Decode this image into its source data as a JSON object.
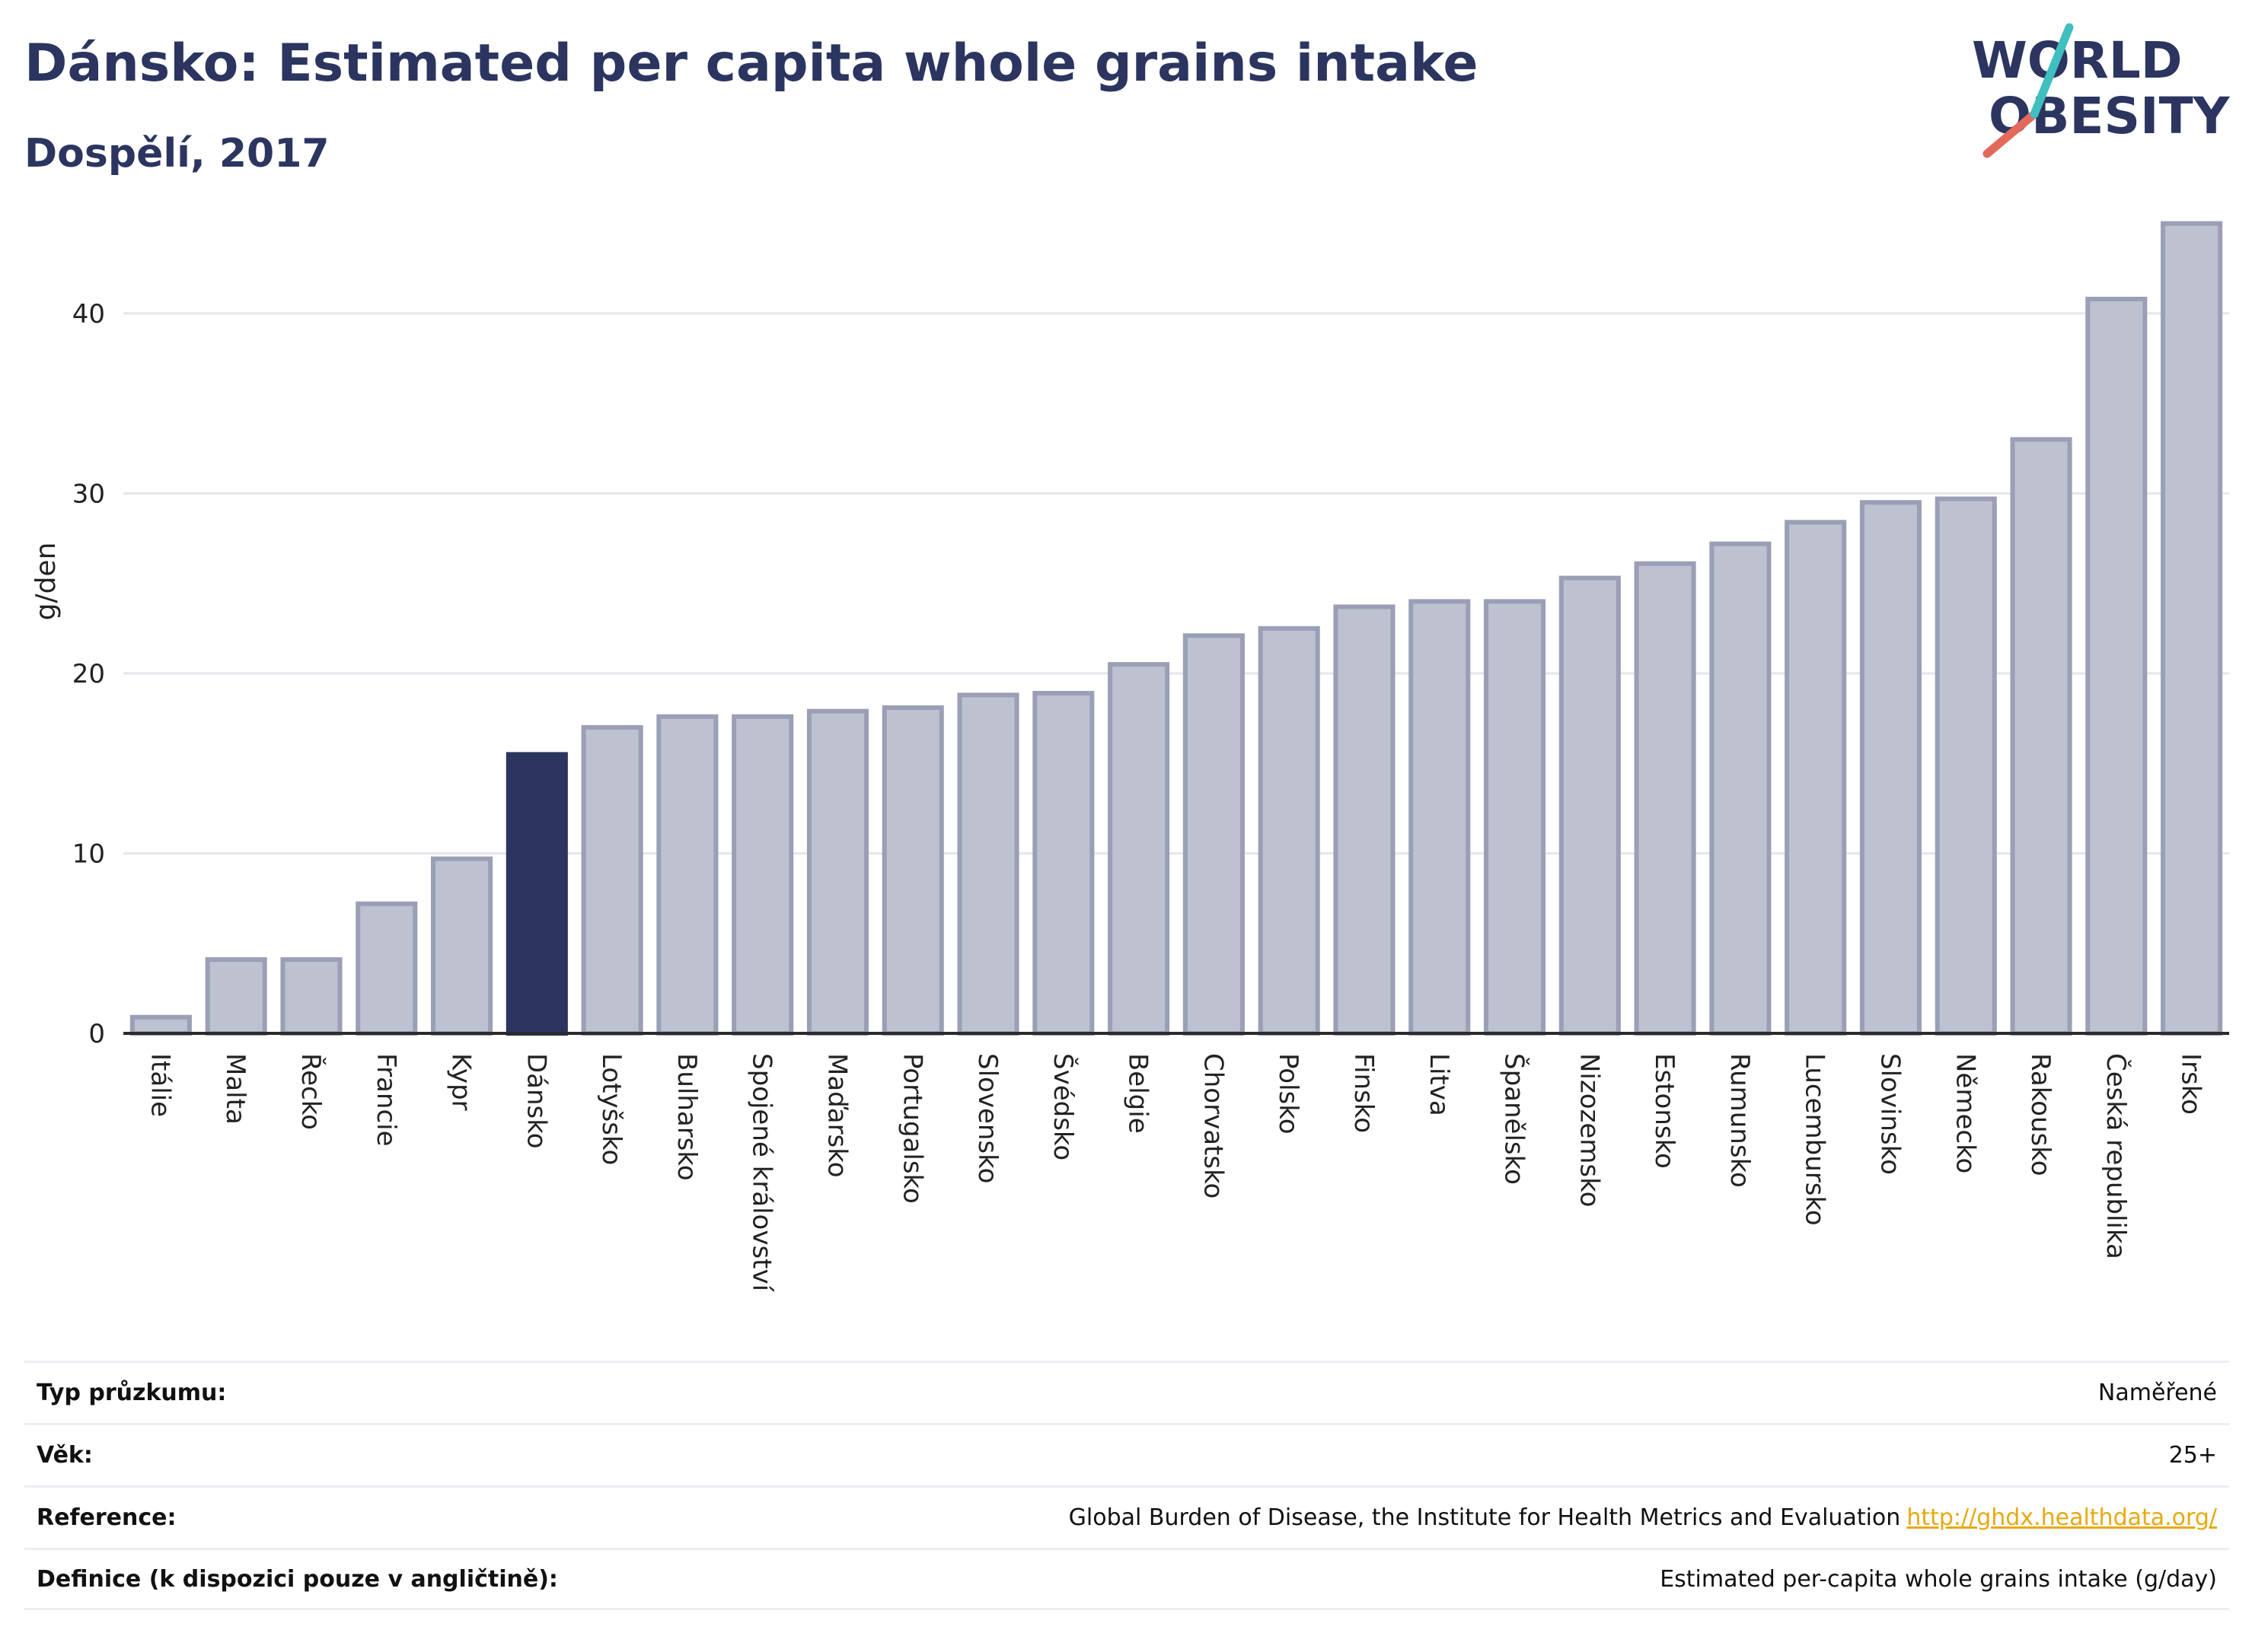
{
  "header": {
    "title": "Dánsko: Estimated per capita whole grains intake",
    "subtitle": "Dospělí, 2017"
  },
  "logo": {
    "line1": "WORLD",
    "line2": "OBESITY",
    "colors": [
      "#2b3560",
      "#e26a5a",
      "#3fbfbf"
    ]
  },
  "chart_data": {
    "type": "bar",
    "ylabel": "g/den",
    "ylim": [
      0,
      46
    ],
    "yticks": [
      0,
      10,
      20,
      30,
      40
    ],
    "grid": true,
    "highlight": "Dánsko",
    "colors": {
      "bar": "#bdc1d0",
      "bar_edge": "#9a9fb6",
      "highlight": "#2b3560"
    },
    "categories": [
      "Itálie",
      "Malta",
      "Řecko",
      "Francie",
      "Kypr",
      "Dánsko",
      "Lotyšsko",
      "Bulharsko",
      "Spojené království",
      "Maďarsko",
      "Portugalsko",
      "Slovensko",
      "Švédsko",
      "Belgie",
      "Chorvatsko",
      "Polsko",
      "Finsko",
      "Litva",
      "Španělsko",
      "Nizozemsko",
      "Estonsko",
      "Rumunsko",
      "Lucembursko",
      "Slovinsko",
      "Německo",
      "Rakousko",
      "Česká republika",
      "Irsko"
    ],
    "values": [
      0.9,
      4.1,
      4.1,
      7.2,
      9.7,
      15.5,
      17.0,
      17.6,
      17.6,
      17.9,
      18.1,
      18.8,
      18.9,
      20.5,
      22.1,
      22.5,
      23.7,
      24.0,
      24.0,
      25.3,
      26.1,
      27.2,
      28.4,
      29.5,
      29.7,
      33.0,
      40.8,
      45.0
    ]
  },
  "info": {
    "rows": [
      {
        "label": "Typ průzkumu:",
        "value": "Naměřené"
      },
      {
        "label": "Věk:",
        "value": "25+"
      },
      {
        "label": "Reference:",
        "value": "Global Burden of Disease, the Institute for Health Metrics and Evaluation",
        "link": "http://ghdx.healthdata.org/"
      },
      {
        "label": "Definice (k dispozici pouze v angličtině):",
        "value": "Estimated per-capita whole grains intake (g/day)"
      }
    ]
  }
}
